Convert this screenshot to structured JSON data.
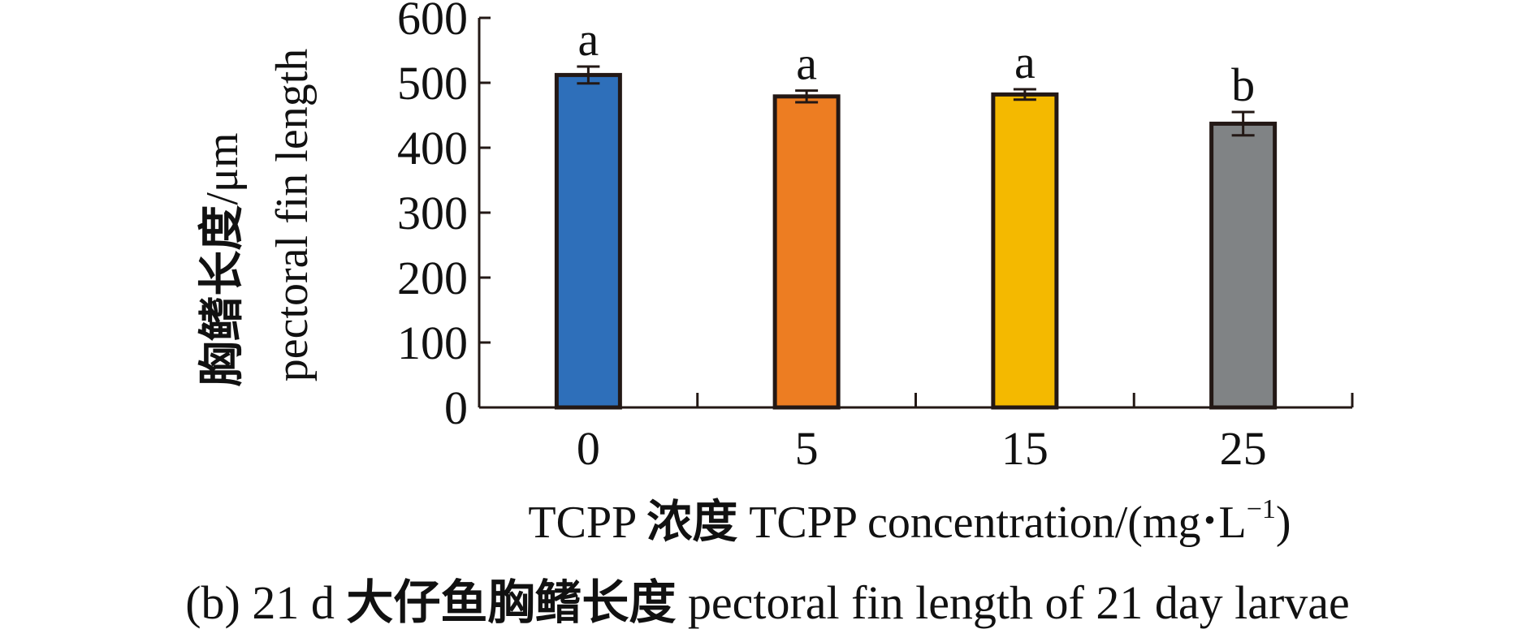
{
  "chart_data": {
    "type": "bar",
    "categories": [
      "0",
      "5",
      "15",
      "25"
    ],
    "values": [
      512,
      479,
      482,
      437
    ],
    "errors": [
      13,
      9,
      8,
      18
    ],
    "significance": [
      "a",
      "a",
      "a",
      "b"
    ],
    "colors": [
      "#2E6FBA",
      "#ED7D22",
      "#F4B900",
      "#808385"
    ],
    "bar_edge_color": "#231815",
    "ylim": [
      0,
      600
    ],
    "yticks": [
      "0",
      "100",
      "200",
      "300",
      "400",
      "500",
      "600"
    ],
    "ylabel_line1_cjk": "胸鳍长度",
    "ylabel_line1_unit": "/μm",
    "ylabel_line2": "pectoral fin length",
    "xlabel_prefix": "TCPP ",
    "xlabel_cjk": "浓度",
    "xlabel_rest": " TCPP concentration/(mg",
    "xlabel_dot": "•",
    "xlabel_L": "L",
    "xlabel_sup": "−1",
    "xlabel_close": ")",
    "caption_prefix": "(b) 21 d ",
    "caption_cjk": "大仔鱼胸鳍长度",
    "caption_rest": " pectoral fin length of 21 day larvae",
    "grid": false,
    "legend": "none"
  }
}
